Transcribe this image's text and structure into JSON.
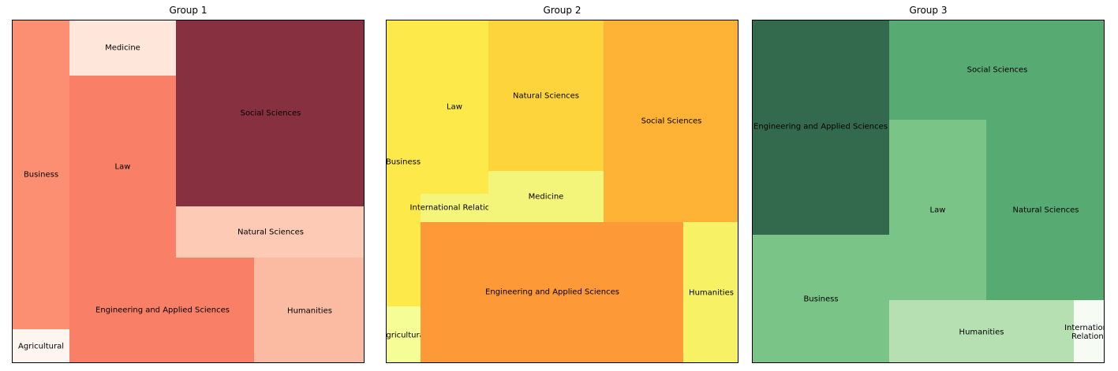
{
  "chart_data": [
    {
      "type": "treemap",
      "title": "Group 1",
      "tiles": [
        {
          "label": "Agricultural",
          "value": 3,
          "color": "#fff5f0"
        },
        {
          "label": "Business",
          "value": 28,
          "color": "#fc8f72"
        },
        {
          "label": "Medicine",
          "value": 9,
          "color": "#fee6da"
        },
        {
          "label": "Law",
          "value": 24,
          "color": "#f97f66"
        },
        {
          "label": "Engineering and Applied Sciences",
          "value": 30,
          "color": "#f97f66"
        },
        {
          "label": "Social Sciences",
          "value": 55,
          "color": "#87303f"
        },
        {
          "label": "Natural Sciences",
          "value": 15,
          "color": "#fccab5"
        },
        {
          "label": "Humanities",
          "value": 18,
          "color": "#fbbba3"
        }
      ]
    },
    {
      "type": "treemap",
      "title": "Group 2",
      "tiles": [
        {
          "label": "Business",
          "value": 10,
          "color": "#fee94a"
        },
        {
          "label": "Agricultural",
          "value": 2,
          "color": "#f5fe96"
        },
        {
          "label": "Law",
          "value": 14,
          "color": "#fee94a"
        },
        {
          "label": "International Relations",
          "value": 3,
          "color": "#f4f57a"
        },
        {
          "label": "Natural Sciences",
          "value": 28,
          "color": "#fed43c"
        },
        {
          "label": "Medicine",
          "value": 9,
          "color": "#f3f57a"
        },
        {
          "label": "Social Sciences",
          "value": 44,
          "color": "#feb236"
        },
        {
          "label": "Engineering and Applied Sciences",
          "value": 60,
          "color": "#fd9936"
        },
        {
          "label": "Humanities",
          "value": 12,
          "color": "#f7f265"
        }
      ]
    },
    {
      "type": "treemap",
      "title": "Group 3",
      "tiles": [
        {
          "label": "Engineering and Applied Sciences",
          "value": 41,
          "color": "#336a4d"
        },
        {
          "label": "Business",
          "value": 28,
          "color": "#7ac487"
        },
        {
          "label": "Social Sciences",
          "value": 34,
          "color": "#56aa72"
        },
        {
          "label": "Law",
          "value": 28,
          "color": "#7ac487"
        },
        {
          "label": "Natural Sciences",
          "value": 35,
          "color": "#56aa72"
        },
        {
          "label": "Humanities",
          "value": 17,
          "color": "#b7e0b2"
        },
        {
          "label": "International\nRelations",
          "value": 3,
          "color": "#f6fcf4"
        }
      ]
    }
  ]
}
